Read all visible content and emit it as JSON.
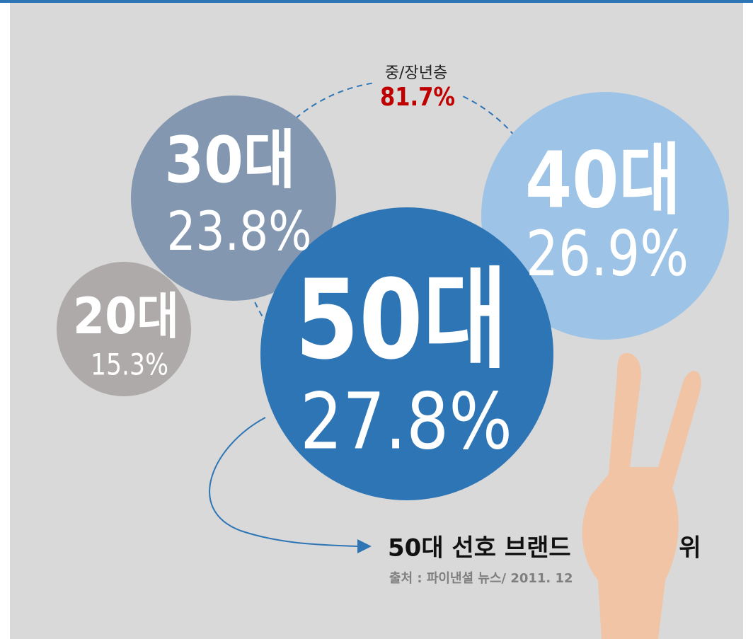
{
  "circles": [
    {
      "label": "20대",
      "value": "15.3%"
    },
    {
      "label": "30대",
      "value": "23.8%"
    },
    {
      "label": "40대",
      "value": "26.9%"
    },
    {
      "label": "50대",
      "value": "27.8%"
    }
  ],
  "group": {
    "label": "중/장년층",
    "value": "81.7%"
  },
  "caption": {
    "text": "50대 선호 브랜드",
    "suffix": "위",
    "source": "출처 : 파이낸셜 뉴스/ 2011. 12"
  }
}
